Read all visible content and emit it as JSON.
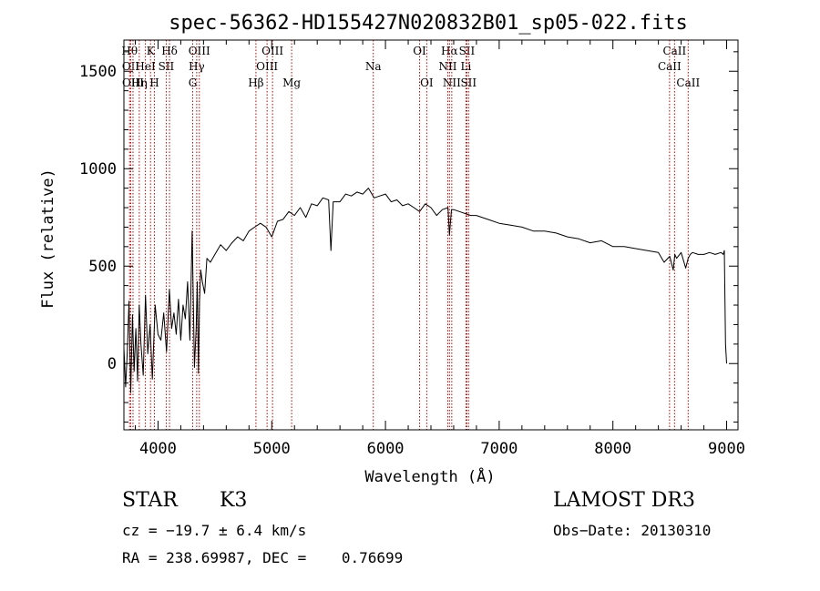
{
  "chart_data": {
    "type": "line",
    "title": "spec-56362-HD155427N020832B01_sp05-022.fits",
    "xlabel": "Wavelength (Å)",
    "ylabel": "Flux (relative)",
    "xlim": [
      3700,
      9100
    ],
    "ylim": [
      -340,
      1660
    ],
    "xticks": [
      4000,
      5000,
      6000,
      7000,
      8000,
      9000
    ],
    "yticks": [
      0,
      500,
      1000,
      1500
    ],
    "series": [
      {
        "name": "flux",
        "color": "#000000",
        "x": [
          3700,
          3715,
          3730,
          3745,
          3760,
          3775,
          3790,
          3805,
          3820,
          3835,
          3850,
          3870,
          3890,
          3910,
          3930,
          3950,
          3975,
          4000,
          4025,
          4050,
          4075,
          4100,
          4120,
          4140,
          4160,
          4180,
          4200,
          4220,
          4240,
          4260,
          4280,
          4300,
          4320,
          4335,
          4345,
          4355,
          4365,
          4375,
          4390,
          4410,
          4430,
          4460,
          4500,
          4550,
          4600,
          4650,
          4700,
          4750,
          4800,
          4850,
          4900,
          4950,
          5000,
          5050,
          5100,
          5150,
          5200,
          5250,
          5300,
          5350,
          5400,
          5450,
          5500,
          5520,
          5540,
          5600,
          5650,
          5700,
          5750,
          5800,
          5850,
          5900,
          5950,
          6000,
          6050,
          6100,
          6150,
          6200,
          6250,
          6300,
          6350,
          6400,
          6450,
          6500,
          6550,
          6563,
          6580,
          6600,
          6650,
          6700,
          6750,
          6800,
          6900,
          7000,
          7100,
          7200,
          7300,
          7400,
          7500,
          7600,
          7700,
          7800,
          7900,
          8000,
          8100,
          8200,
          8300,
          8400,
          8450,
          8500,
          8530,
          8545,
          8560,
          8600,
          8640,
          8662,
          8680,
          8700,
          8750,
          8800,
          8850,
          8900,
          8950,
          8970,
          8980,
          8990,
          9000
        ],
        "values": [
          80,
          -120,
          60,
          320,
          -150,
          250,
          -40,
          180,
          -90,
          300,
          100,
          -60,
          350,
          50,
          200,
          -80,
          300,
          150,
          120,
          260,
          60,
          380,
          180,
          260,
          150,
          330,
          120,
          300,
          230,
          420,
          120,
          680,
          -20,
          180,
          420,
          -50,
          320,
          480,
          420,
          360,
          540,
          520,
          560,
          610,
          580,
          620,
          650,
          630,
          680,
          700,
          720,
          700,
          650,
          730,
          740,
          780,
          760,
          800,
          750,
          820,
          810,
          850,
          840,
          580,
          830,
          830,
          870,
          860,
          880,
          870,
          900,
          850,
          860,
          870,
          830,
          840,
          810,
          820,
          800,
          780,
          820,
          800,
          760,
          790,
          800,
          660,
          790,
          790,
          780,
          770,
          760,
          760,
          740,
          720,
          710,
          700,
          680,
          680,
          670,
          650,
          640,
          620,
          630,
          600,
          600,
          590,
          580,
          570,
          520,
          550,
          480,
          560,
          540,
          570,
          490,
          540,
          560,
          570,
          560,
          560,
          570,
          560,
          570,
          560,
          580,
          100,
          0
        ]
      }
    ],
    "line_markers": [
      {
        "label": "Hθ",
        "x": 3750,
        "row": 1
      },
      {
        "label": "OII",
        "x": 3760,
        "row": 2
      },
      {
        "label": "OIII",
        "x": 3780,
        "row": 3
      },
      {
        "label": "K",
        "x": 3934,
        "row": 1
      },
      {
        "label": "HeI",
        "x": 3889,
        "row": 2
      },
      {
        "label": "Hη",
        "x": 3835,
        "row": 3
      },
      {
        "label": "Hδ",
        "x": 4101,
        "row": 1
      },
      {
        "label": "SII",
        "x": 4072,
        "row": 2
      },
      {
        "label": "H",
        "x": 3968,
        "row": 3
      },
      {
        "label": "OIII",
        "x": 4363,
        "row": 1
      },
      {
        "label": "Hγ",
        "x": 4340,
        "row": 2
      },
      {
        "label": "G",
        "x": 4305,
        "row": 3
      },
      {
        "label": "OIII",
        "x": 5007,
        "row": 1
      },
      {
        "label": "OIII",
        "x": 4959,
        "row": 2
      },
      {
        "label": "Hβ",
        "x": 4861,
        "row": 3
      },
      {
        "label": "Mg",
        "x": 5175,
        "row": 3
      },
      {
        "label": "Na",
        "x": 5893,
        "row": 2
      },
      {
        "label": "OI",
        "x": 6300,
        "row": 1
      },
      {
        "label": "OI",
        "x": 6363,
        "row": 3
      },
      {
        "label": "Hα",
        "x": 6563,
        "row": 1
      },
      {
        "label": "SII",
        "x": 6716,
        "row": 1
      },
      {
        "label": "NII",
        "x": 6548,
        "row": 2
      },
      {
        "label": "Li",
        "x": 6708,
        "row": 2
      },
      {
        "label": "NII",
        "x": 6583,
        "row": 3
      },
      {
        "label": "SII",
        "x": 6731,
        "row": 3
      },
      {
        "label": "CaII",
        "x": 8542,
        "row": 1
      },
      {
        "label": "CaII",
        "x": 8498,
        "row": 2
      },
      {
        "label": "CaII",
        "x": 8662,
        "row": 3
      }
    ]
  },
  "info": {
    "object_type": "STAR",
    "subclass": "K3",
    "survey": "LAMOST DR3",
    "cz_line": "cz = −19.7 ± 6.4 km/s",
    "obs_date_line": "Obs−Date: 20130310",
    "radec_line": "RA = 238.69987, DEC =    0.76699"
  },
  "colors": {
    "marker_line": "#cc0000",
    "spectrum": "#000000",
    "axes": "#000000",
    "background": "#ffffff"
  }
}
